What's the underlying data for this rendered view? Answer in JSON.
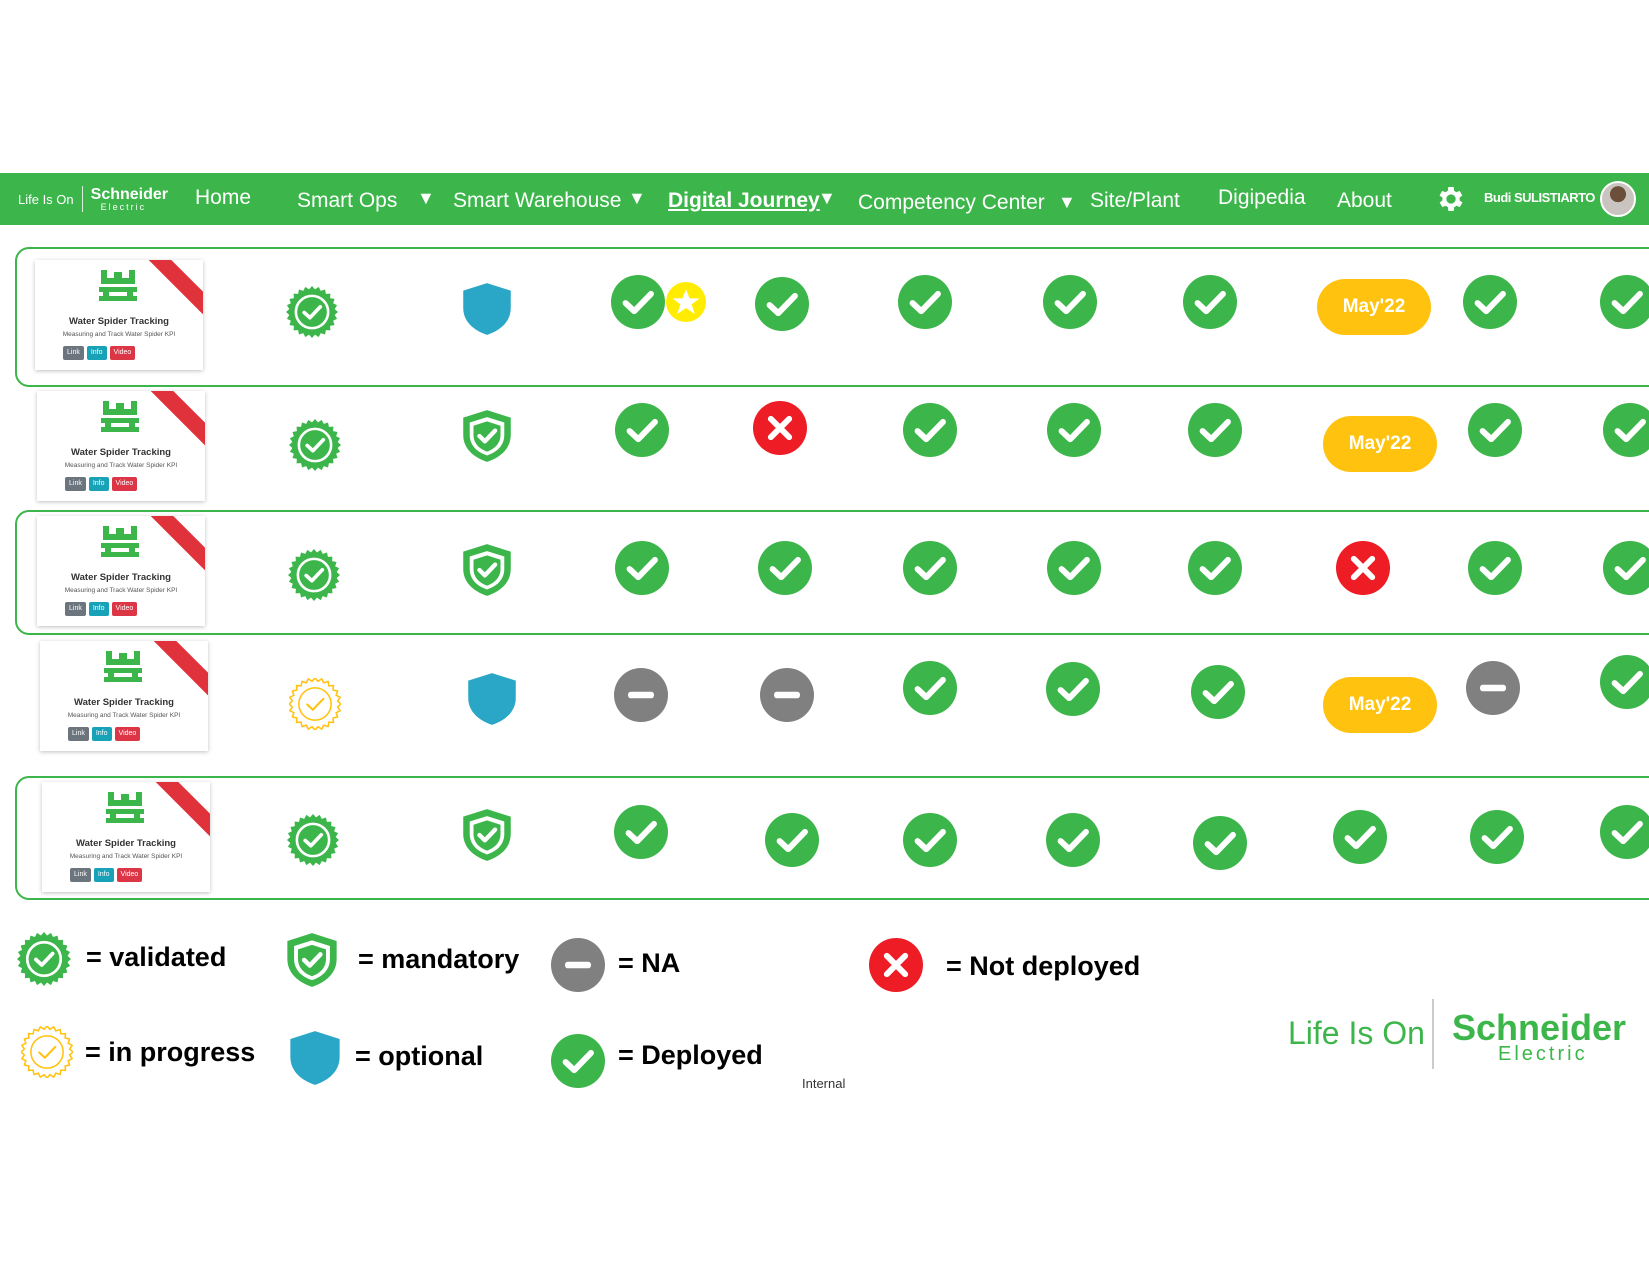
{
  "nav": {
    "brand_tagline": "Life Is On",
    "brand_name": "Schneider",
    "brand_sub": "Electric",
    "items": [
      {
        "label": "Home"
      },
      {
        "label": "Smart Ops"
      },
      {
        "label": "Smart Warehouse"
      },
      {
        "label": "Digital Journey"
      },
      {
        "label": "Competency Center"
      },
      {
        "label": "Site/Plant"
      },
      {
        "label": "Digipedia"
      },
      {
        "label": "About"
      }
    ],
    "active_item": "Digital Journey",
    "user_name": "Budi SULISTIARTO",
    "caret": "▼"
  },
  "card": {
    "title": "Water Spider Tracking",
    "subtitle": "Measuring and Track Water Spider KPI",
    "buttons": {
      "link": "Link",
      "info": "Info",
      "video": "Video"
    }
  },
  "rows": [
    {
      "validation": "validated",
      "compliance": "optional",
      "cells": [
        "deployed-star",
        "deployed",
        "deployed",
        "deployed",
        "deployed",
        "May'22",
        "deployed",
        "deployed"
      ]
    },
    {
      "validation": "validated",
      "compliance": "mandatory",
      "cells": [
        "deployed",
        "not-deployed",
        "deployed",
        "deployed",
        "deployed",
        "May'22",
        "deployed",
        "deployed"
      ]
    },
    {
      "validation": "validated",
      "compliance": "mandatory",
      "cells": [
        "deployed",
        "deployed",
        "deployed",
        "deployed",
        "deployed",
        "not-deployed",
        "deployed",
        "deployed"
      ]
    },
    {
      "validation": "in-progress",
      "compliance": "optional",
      "cells": [
        "na",
        "na",
        "deployed",
        "deployed",
        "deployed",
        "May'22",
        "na",
        "deployed"
      ]
    },
    {
      "validation": "validated",
      "compliance": "mandatory",
      "cells": [
        "deployed",
        "deployed",
        "deployed",
        "deployed",
        "deployed",
        "deployed",
        "deployed",
        "deployed"
      ]
    }
  ],
  "legend": {
    "validated": "= validated",
    "mandatory": "= mandatory",
    "na": "= NA",
    "not_deployed": "= Not deployed",
    "in_progress": "= in progress",
    "optional": "= optional",
    "deployed": "= Deployed"
  },
  "footer": {
    "internal": "Internal",
    "brand_tagline": "Life Is On",
    "brand_name": "Schneider",
    "brand_sub": "Electric"
  },
  "colors": {
    "green": "#3cb64a",
    "red": "#ee1c25",
    "gray": "#808080",
    "yellow": "#ffc20e",
    "teal": "#2aa6c6"
  }
}
